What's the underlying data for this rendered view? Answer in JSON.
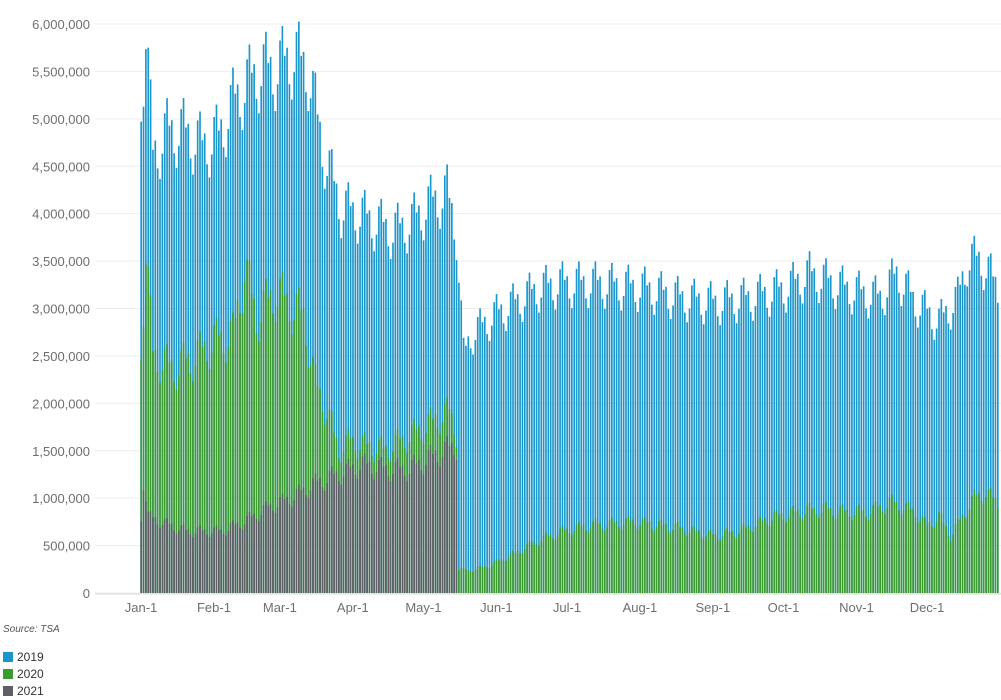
{
  "source": "Source: TSA",
  "colors": {
    "2019": "#1a96cb",
    "2020": "#3d9a2e",
    "2021": "#5e5e66"
  },
  "chart_data": {
    "type": "bar",
    "stacking": "overlaid",
    "xlabel": "",
    "ylabel": "",
    "ylim": [
      0,
      6000000
    ],
    "y_ticks": [
      0,
      500000,
      1000000,
      1500000,
      2000000,
      2500000,
      3000000,
      3500000,
      4000000,
      4500000,
      5000000,
      5500000,
      6000000
    ],
    "y_tick_labels": [
      "0",
      "500,000",
      "1,000,000",
      "1,500,000",
      "2,000,000",
      "2,500,000",
      "3,000,000",
      "3,500,000",
      "4,000,000",
      "4,500,000",
      "5,000,000",
      "5,500,000",
      "6,000,000"
    ],
    "x_ticks": [
      {
        "label": "Jan-1",
        "day": 1
      },
      {
        "label": "Feb-1",
        "day": 32
      },
      {
        "label": "Mar-1",
        "day": 60
      },
      {
        "label": "Apr-1",
        "day": 91
      },
      {
        "label": "May-1",
        "day": 121
      },
      {
        "label": "Jun-1",
        "day": 152
      },
      {
        "label": "Jul-1",
        "day": 182
      },
      {
        "label": "Aug-1",
        "day": 213
      },
      {
        "label": "Sep-1",
        "day": 244
      },
      {
        "label": "Oct-1",
        "day": 274
      },
      {
        "label": "Nov-1",
        "day": 305
      },
      {
        "label": "Dec-1",
        "day": 335
      }
    ],
    "grid": true,
    "legend_position": "bottom-left",
    "series": [
      {
        "name": "2019",
        "color": "#1a96cb",
        "anchors": [
          [
            1,
            5200000
          ],
          [
            3,
            5900000
          ],
          [
            6,
            4600000
          ],
          [
            12,
            4850000
          ],
          [
            19,
            4850000
          ],
          [
            27,
            4700000
          ],
          [
            34,
            4800000
          ],
          [
            40,
            5150000
          ],
          [
            46,
            5350000
          ],
          [
            52,
            5500000
          ],
          [
            58,
            5500000
          ],
          [
            66,
            5650000
          ],
          [
            72,
            5500000
          ],
          [
            78,
            4700000
          ],
          [
            82,
            4350000
          ],
          [
            86,
            4050000
          ],
          [
            92,
            4000000
          ],
          [
            100,
            3900000
          ],
          [
            108,
            3800000
          ],
          [
            116,
            3900000
          ],
          [
            124,
            4100000
          ],
          [
            131,
            4200000
          ],
          [
            135,
            3800000
          ],
          [
            138,
            2500000
          ],
          [
            141,
            2700000
          ],
          [
            150,
            2900000
          ],
          [
            160,
            3050000
          ],
          [
            170,
            3200000
          ],
          [
            180,
            3250000
          ],
          [
            195,
            3250000
          ],
          [
            215,
            3200000
          ],
          [
            230,
            3100000
          ],
          [
            245,
            3050000
          ],
          [
            260,
            3100000
          ],
          [
            275,
            3200000
          ],
          [
            285,
            3350000
          ],
          [
            300,
            3200000
          ],
          [
            315,
            3100000
          ],
          [
            322,
            3350000
          ],
          [
            330,
            3050000
          ],
          [
            340,
            2850000
          ],
          [
            348,
            3100000
          ],
          [
            352,
            3500000
          ],
          [
            358,
            3500000
          ],
          [
            365,
            3200000
          ]
        ],
        "weekly_amplitude": 0.08
      },
      {
        "name": "2020",
        "color": "#3d9a2e",
        "anchors": [
          [
            1,
            2600000
          ],
          [
            3,
            3600000
          ],
          [
            6,
            2500000
          ],
          [
            15,
            2350000
          ],
          [
            25,
            2500000
          ],
          [
            32,
            2650000
          ],
          [
            40,
            2700000
          ],
          [
            45,
            3400000
          ],
          [
            50,
            2900000
          ],
          [
            58,
            3150000
          ],
          [
            63,
            3050000
          ],
          [
            70,
            2900000
          ],
          [
            75,
            2200000
          ],
          [
            80,
            1900000
          ],
          [
            85,
            1500000
          ],
          [
            90,
            1600000
          ],
          [
            95,
            1550000
          ],
          [
            105,
            1500000
          ],
          [
            115,
            1650000
          ],
          [
            122,
            1750000
          ],
          [
            128,
            1850000
          ],
          [
            132,
            1900000
          ],
          [
            135,
            1700000
          ],
          [
            136,
            250000
          ],
          [
            140,
            240000
          ],
          [
            145,
            260000
          ],
          [
            150,
            300000
          ],
          [
            160,
            420000
          ],
          [
            170,
            550000
          ],
          [
            180,
            650000
          ],
          [
            190,
            700000
          ],
          [
            210,
            750000
          ],
          [
            230,
            680000
          ],
          [
            245,
            600000
          ],
          [
            255,
            650000
          ],
          [
            270,
            800000
          ],
          [
            280,
            850000
          ],
          [
            290,
            880000
          ],
          [
            300,
            850000
          ],
          [
            310,
            850000
          ],
          [
            320,
            950000
          ],
          [
            330,
            850000
          ],
          [
            335,
            700000
          ],
          [
            340,
            800000
          ],
          [
            345,
            600000
          ],
          [
            350,
            800000
          ],
          [
            355,
            1000000
          ],
          [
            360,
            1050000
          ],
          [
            365,
            950000
          ]
        ],
        "weekly_amplitude": 0.1
      },
      {
        "name": "2021",
        "color": "#5e5e66",
        "anchors": [
          [
            1,
            800000
          ],
          [
            2,
            1200000
          ],
          [
            4,
            800000
          ],
          [
            20,
            650000
          ],
          [
            35,
            650000
          ],
          [
            45,
            750000
          ],
          [
            55,
            900000
          ],
          [
            65,
            1000000
          ],
          [
            75,
            1150000
          ],
          [
            85,
            1250000
          ],
          [
            95,
            1350000
          ],
          [
            105,
            1300000
          ],
          [
            115,
            1300000
          ],
          [
            122,
            1400000
          ],
          [
            130,
            1500000
          ],
          [
            135,
            1550000
          ]
        ],
        "weekly_amplitude": 0.1
      }
    ]
  }
}
